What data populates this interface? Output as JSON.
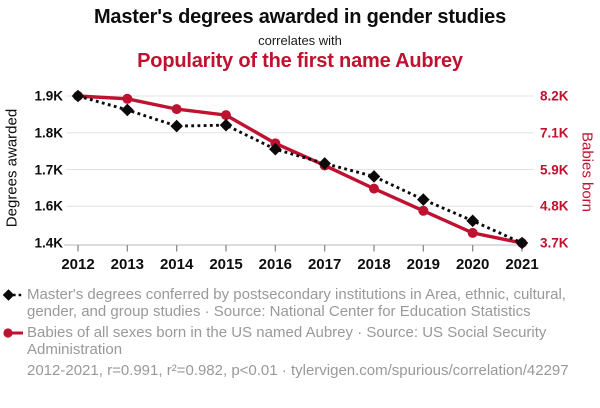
{
  "header": {
    "title": "Master's degrees awarded in gender studies",
    "subtitle": "correlates with",
    "title2": "Popularity of the first name Aubrey"
  },
  "chart_data": {
    "type": "line",
    "x": [
      2012,
      2013,
      2014,
      2015,
      2016,
      2017,
      2018,
      2019,
      2020,
      2021
    ],
    "x_tick_labels": [
      "2012",
      "2013",
      "2014",
      "2015",
      "2016",
      "2017",
      "2018",
      "2019",
      "2020",
      "2021"
    ],
    "series": [
      {
        "name": "Master's degrees awarded in gender studies",
        "axis": "left",
        "style": "dotted line with diamond markers",
        "color": "#0a0a0a",
        "values": [
          1904,
          1860,
          1809,
          1812,
          1736,
          1691,
          1650,
          1577,
          1510,
          1440
        ]
      },
      {
        "name": "Popularity of the first name Aubrey",
        "axis": "right",
        "style": "solid line with circle markers",
        "color": "#be1230",
        "values": [
          8186,
          8100,
          7783,
          7598,
          6730,
          6049,
          5337,
          4655,
          3975,
          3665
        ]
      }
    ],
    "left_axis": {
      "label": "Degrees awarded",
      "ticks": [
        "1.9K",
        "1.8K",
        "1.7K",
        "1.6K",
        "1.4K"
      ],
      "max_value": 1904,
      "min_value": 1440
    },
    "right_axis": {
      "label": "Babies born",
      "ticks": [
        "8.2K",
        "7.1K",
        "5.9K",
        "4.8K",
        "3.7K"
      ],
      "max_value": 8186,
      "min_value": 3665
    },
    "grid": "horizontal gridlines only",
    "legend_position": "bottom-left"
  },
  "legend": {
    "entries": [
      {
        "marker": "black-diamond-dotted-line",
        "text": "Master's degrees conferred by postsecondary institutions in Area, ethnic, cultural, gender, and group studies · Source: National Center for Education Statistics"
      },
      {
        "marker": "red-circle-solid-line",
        "text": "Babies of all sexes born in the US named Aubrey · Source: US Social Security Administration"
      }
    ]
  },
  "footer": {
    "text": "2012-2021, r=0.991, r²=0.982, p<0.01 · tylervigen.com/spurious/correlation/42297"
  },
  "colors": {
    "red": "#be1230",
    "black": "#0a0a0a",
    "legend_gray": "#999999",
    "gridline": "#e3e3e3",
    "axis_line": "#c6c6c6",
    "tick_mark": "#8c8c8c"
  }
}
